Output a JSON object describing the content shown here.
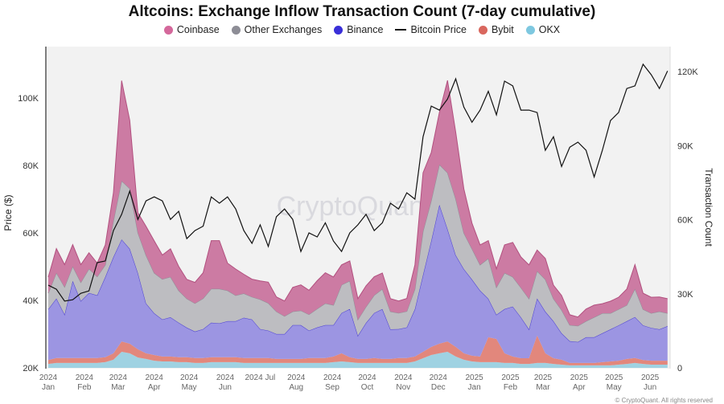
{
  "chart_data": {
    "type": "area",
    "stacked": true,
    "title": "Altcoins: Exchange Inflow Transaction Count (7-day cumulative)",
    "ylabel_left": "Price ($)",
    "ylabel_right": "Transaction Count",
    "ylim_left": [
      20000,
      115000
    ],
    "ylim_right": [
      0,
      129000
    ],
    "yticks_left": [
      {
        "v": 20,
        "label": "20K"
      },
      {
        "v": 40,
        "label": "40K"
      },
      {
        "v": 60,
        "label": "60K"
      },
      {
        "v": 80,
        "label": "80K"
      },
      {
        "v": 100,
        "label": "100K"
      }
    ],
    "yticks_right": [
      {
        "v": 0,
        "label": "0"
      },
      {
        "v": 30,
        "label": "30K"
      },
      {
        "v": 60,
        "label": "60K"
      },
      {
        "v": 90,
        "label": "90K"
      },
      {
        "v": 120,
        "label": "120K"
      }
    ],
    "xticks": [
      {
        "date": "2024-01-01",
        "l1": "2024",
        "l2": "Jan"
      },
      {
        "date": "2024-02-01",
        "l1": "2024",
        "l2": "Feb"
      },
      {
        "date": "2024-03-01",
        "l1": "2024",
        "l2": "Mar"
      },
      {
        "date": "2024-04-01",
        "l1": "2024",
        "l2": "Apr"
      },
      {
        "date": "2024-05-01",
        "l1": "2024",
        "l2": "May"
      },
      {
        "date": "2024-06-01",
        "l1": "2024",
        "l2": "Jun"
      },
      {
        "date": "2024-07-01",
        "l1": "2024 Jul",
        "l2": ""
      },
      {
        "date": "2024-08-01",
        "l1": "2024",
        "l2": "Aug"
      },
      {
        "date": "2024-09-01",
        "l1": "2024",
        "l2": "Sep"
      },
      {
        "date": "2024-10-01",
        "l1": "2024",
        "l2": "Oct"
      },
      {
        "date": "2024-11-01",
        "l1": "2024",
        "l2": "Nov"
      },
      {
        "date": "2024-12-01",
        "l1": "2024",
        "l2": "Dec"
      },
      {
        "date": "2025-01-01",
        "l1": "2025",
        "l2": "Jan"
      },
      {
        "date": "2025-02-01",
        "l1": "2025",
        "l2": "Feb"
      },
      {
        "date": "2025-03-01",
        "l1": "2025",
        "l2": "Mar"
      },
      {
        "date": "2025-04-01",
        "l1": "2025",
        "l2": "Apr"
      },
      {
        "date": "2025-05-01",
        "l1": "2025",
        "l2": "May"
      },
      {
        "date": "2025-06-01",
        "l1": "2025",
        "l2": "Jun"
      }
    ],
    "grid": false,
    "legend_position": "top",
    "units": "thousands",
    "x": [
      "2024-01-01",
      "2024-01-08",
      "2024-01-15",
      "2024-01-22",
      "2024-01-29",
      "2024-02-05",
      "2024-02-12",
      "2024-02-19",
      "2024-02-26",
      "2024-03-04",
      "2024-03-11",
      "2024-03-18",
      "2024-03-25",
      "2024-04-01",
      "2024-04-08",
      "2024-04-15",
      "2024-04-22",
      "2024-04-29",
      "2024-05-06",
      "2024-05-13",
      "2024-05-20",
      "2024-05-27",
      "2024-06-03",
      "2024-06-10",
      "2024-06-17",
      "2024-06-24",
      "2024-07-01",
      "2024-07-08",
      "2024-07-15",
      "2024-07-22",
      "2024-07-29",
      "2024-08-05",
      "2024-08-12",
      "2024-08-19",
      "2024-08-26",
      "2024-09-02",
      "2024-09-09",
      "2024-09-16",
      "2024-09-23",
      "2024-09-30",
      "2024-10-07",
      "2024-10-14",
      "2024-10-21",
      "2024-10-28",
      "2024-11-04",
      "2024-11-11",
      "2024-11-18",
      "2024-11-25",
      "2024-12-02",
      "2024-12-09",
      "2024-12-16",
      "2024-12-23",
      "2024-12-30",
      "2025-01-06",
      "2025-01-13",
      "2025-01-20",
      "2025-01-27",
      "2025-02-03",
      "2025-02-10",
      "2025-02-17",
      "2025-02-24",
      "2025-03-03",
      "2025-03-10",
      "2025-03-17",
      "2025-03-24",
      "2025-03-31",
      "2025-04-07",
      "2025-04-14",
      "2025-04-21",
      "2025-04-28",
      "2025-05-05",
      "2025-05-12",
      "2025-05-19",
      "2025-05-26",
      "2025-06-02",
      "2025-06-09",
      "2025-06-16"
    ],
    "series": [
      {
        "name": "OKX",
        "axis": "right",
        "color": "#9fd2e2",
        "values": [
          1.6,
          2.0,
          2.0,
          2.0,
          2.0,
          2.0,
          2.0,
          2.3,
          3.3,
          6.5,
          5.9,
          4.2,
          3.6,
          2.9,
          2.6,
          2.6,
          2.3,
          2.3,
          2.0,
          2.0,
          2.3,
          2.3,
          2.3,
          2.3,
          2.0,
          2.0,
          2.0,
          2.0,
          2.0,
          2.0,
          2.0,
          2.0,
          2.0,
          2.0,
          2.0,
          2.3,
          2.6,
          2.3,
          2.0,
          2.0,
          2.0,
          2.0,
          2.0,
          2.0,
          2.0,
          2.6,
          3.9,
          5.2,
          5.9,
          6.5,
          4.6,
          3.3,
          2.6,
          2.3,
          2.3,
          2.3,
          2.0,
          2.0,
          1.6,
          1.6,
          2.0,
          2.0,
          1.6,
          1.3,
          1.0,
          1.0,
          1.0,
          1.0,
          1.0,
          1.0,
          1.3,
          1.6,
          2.0,
          1.6,
          1.3,
          1.3,
          1.3
        ]
      },
      {
        "name": "Bybit",
        "axis": "right",
        "color": "#e2877c",
        "values": [
          1.6,
          2.0,
          2.0,
          2.0,
          2.0,
          2.0,
          2.0,
          2.0,
          2.6,
          4.2,
          3.9,
          3.3,
          2.3,
          2.3,
          2.0,
          2.0,
          2.0,
          2.0,
          2.0,
          2.0,
          2.0,
          2.0,
          2.0,
          2.0,
          2.0,
          2.0,
          2.0,
          2.0,
          1.6,
          1.6,
          1.6,
          1.6,
          2.0,
          2.0,
          2.0,
          2.3,
          3.3,
          2.0,
          1.6,
          1.6,
          2.0,
          1.6,
          1.6,
          2.0,
          2.0,
          2.0,
          2.6,
          3.3,
          3.9,
          4.2,
          3.9,
          2.6,
          2.3,
          2.3,
          10.1,
          9.4,
          3.9,
          2.6,
          2.3,
          2.3,
          11.1,
          3.9,
          2.3,
          2.0,
          1.0,
          1.0,
          1.0,
          1.0,
          1.3,
          1.6,
          1.6,
          2.0,
          2.0,
          1.6,
          1.6,
          1.6,
          1.6
        ]
      },
      {
        "name": "Binance",
        "axis": "right",
        "color": "#9c95e2",
        "stroke": "#4b3fd3",
        "values": [
          20.5,
          24.1,
          17.6,
          31.2,
          23.1,
          26.3,
          25.4,
          32.5,
          39.0,
          41.3,
          38.4,
          30.9,
          20.2,
          16.9,
          15.0,
          15.9,
          14.0,
          12.0,
          10.7,
          11.7,
          14.0,
          13.7,
          14.6,
          14.6,
          16.3,
          15.6,
          11.7,
          11.1,
          10.1,
          10.1,
          13.7,
          13.7,
          11.1,
          12.4,
          13.3,
          12.7,
          16.3,
          19.5,
          9.4,
          14.6,
          18.2,
          20.2,
          12.0,
          11.7,
          12.4,
          19.2,
          31.2,
          42.9,
          56.2,
          45.5,
          37.1,
          34.1,
          30.9,
          26.7,
          15.6,
          9.8,
          17.9,
          20.2,
          16.6,
          11.7,
          15.0,
          16.9,
          15.0,
          10.7,
          8.8,
          8.5,
          10.4,
          10.4,
          11.7,
          13.0,
          14.3,
          15.3,
          16.6,
          14.0,
          13.3,
          12.7,
          14.0
        ]
      },
      {
        "name": "Other Exchanges",
        "axis": "right",
        "color": "#bdbdc1",
        "stroke": "#8f8f98",
        "values": [
          6.5,
          10.4,
          11.1,
          5.9,
          7.5,
          9.8,
          7.5,
          4.9,
          14.6,
          23.7,
          24.4,
          16.3,
          19.5,
          16.3,
          16.3,
          16.3,
          13.0,
          11.7,
          11.4,
          12.4,
          13.7,
          14.0,
          12.4,
          10.4,
          9.8,
          9.1,
          12.0,
          11.1,
          9.1,
          7.2,
          5.5,
          5.9,
          6.5,
          7.5,
          8.8,
          8.1,
          11.4,
          11.4,
          6.5,
          6.5,
          7.2,
          8.1,
          7.2,
          6.5,
          6.5,
          8.1,
          17.6,
          16.3,
          16.3,
          22.8,
          22.8,
          14.6,
          12.4,
          10.4,
          16.3,
          11.1,
          14.6,
          12.0,
          12.0,
          12.4,
          11.1,
          13.0,
          9.1,
          9.4,
          6.5,
          6.5,
          6.5,
          8.1,
          8.1,
          6.5,
          6.5,
          6.5,
          11.4,
          6.5,
          5.9,
          7.2,
          5.2
        ]
      },
      {
        "name": "Coinbase",
        "axis": "right",
        "color": "#cc7ba3",
        "stroke": "#b2507f",
        "values": [
          6.5,
          9.8,
          9.1,
          8.8,
          7.2,
          6.5,
          5.5,
          8.1,
          11.4,
          40.6,
          27.6,
          8.1,
          11.7,
          13.0,
          9.8,
          11.4,
          9.8,
          7.8,
          8.5,
          10.4,
          19.5,
          19.5,
          11.1,
          10.7,
          7.8,
          7.2,
          7.5,
          8.5,
          5.9,
          6.2,
          9.8,
          10.4,
          9.8,
          11.4,
          12.4,
          11.4,
          8.1,
          8.1,
          8.5,
          8.5,
          7.5,
          6.5,
          5.2,
          4.9,
          5.2,
          9.8,
          23.7,
          19.5,
          21.1,
          37.4,
          27.0,
          17.9,
          10.4,
          8.1,
          7.2,
          7.5,
          11.4,
          14.0,
          12.4,
          13.7,
          8.5,
          8.5,
          5.5,
          5.9,
          4.2,
          3.6,
          4.9,
          4.9,
          3.9,
          4.9,
          4.9,
          6.5,
          9.8,
          6.5,
          6.5,
          5.9,
          5.9
        ]
      },
      {
        "name": "Bitcoin Price",
        "axis": "left",
        "type": "line",
        "color": "#111111",
        "values": [
          44.5,
          43.3,
          39.8,
          40.2,
          42.1,
          42.8,
          51.2,
          51.7,
          60.7,
          65.5,
          72.4,
          64.0,
          69.5,
          70.7,
          69.5,
          64.0,
          66.4,
          58.3,
          60.7,
          62.0,
          70.7,
          68.8,
          70.7,
          67.1,
          60.7,
          56.9,
          62.4,
          56.0,
          64.8,
          67.1,
          64.0,
          54.5,
          60.0,
          58.8,
          63.0,
          57.6,
          54.5,
          60.0,
          62.4,
          65.5,
          60.7,
          63.0,
          68.8,
          67.1,
          71.9,
          70.0,
          88.5,
          97.6,
          96.4,
          99.7,
          105.7,
          97.3,
          92.8,
          96.4,
          102.0,
          95.0,
          105.0,
          103.6,
          96.4,
          96.4,
          95.7,
          84.5,
          88.5,
          79.7,
          85.4,
          86.9,
          84.5,
          76.6,
          84.5,
          93.3,
          95.7,
          102.8,
          103.6,
          110.0,
          106.9,
          102.8,
          108.0
        ]
      }
    ]
  },
  "legend": [
    {
      "label": "Coinbase",
      "color": "#d4689b",
      "kind": "dot"
    },
    {
      "label": "Other Exchanges",
      "color": "#8d8d96",
      "kind": "dot"
    },
    {
      "label": "Binance",
      "color": "#3a2fd8",
      "kind": "dot"
    },
    {
      "label": "Bitcoin Price",
      "color": "#111111",
      "kind": "line"
    },
    {
      "label": "Bybit",
      "color": "#d9675e",
      "kind": "dot"
    },
    {
      "label": "OKX",
      "color": "#7ec8e0",
      "kind": "dot"
    }
  ],
  "watermark": "CryptoQuant",
  "copyright": "© CryptoQuant. All rights reserved"
}
